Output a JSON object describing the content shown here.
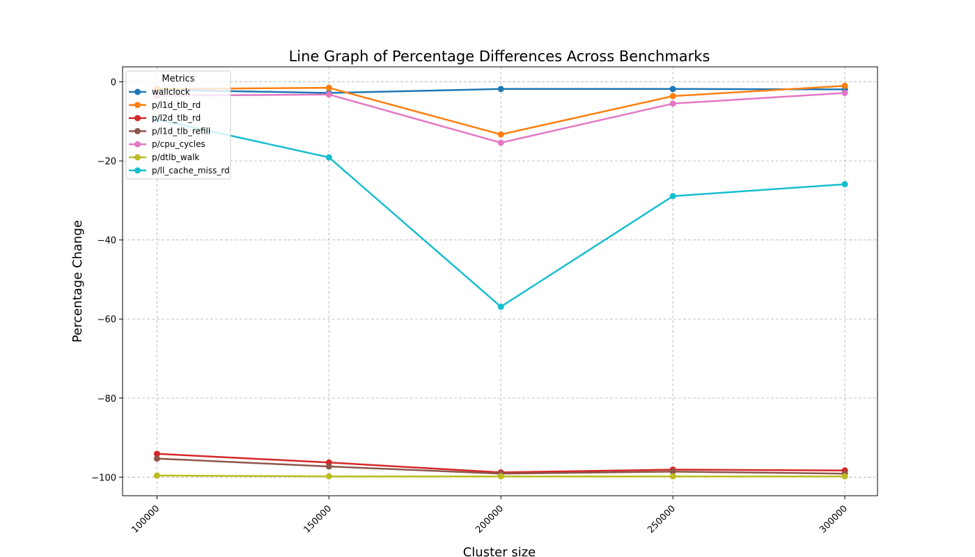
{
  "chart_data": {
    "type": "line",
    "title": "Line Graph of Percentage Differences Across Benchmarks",
    "xlabel": "Cluster size",
    "ylabel": "Percentage Change",
    "x": [
      100000,
      150000,
      200000,
      250000,
      300000
    ],
    "x_tick_labels": [
      "100000",
      "150000",
      "200000",
      "250000",
      "300000"
    ],
    "y_ticks": [
      0,
      -20,
      -40,
      -60,
      -80,
      -100
    ],
    "y_tick_labels": [
      "0",
      "−20",
      "−40",
      "−60",
      "−80",
      "−100"
    ],
    "xlim": [
      90000,
      309500
    ],
    "ylim": [
      -104.7,
      3.8
    ],
    "grid": true,
    "legend": {
      "title": "Metrics",
      "placement": "top-left"
    },
    "series": [
      {
        "name": "wallclock",
        "color": "#1f77b4",
        "values": [
          -2.0,
          -2.8,
          -1.8,
          -1.8,
          -1.9
        ]
      },
      {
        "name": "p/l1d_tlb_rd",
        "color": "#ff7f0e",
        "values": [
          -1.8,
          -1.5,
          -13.3,
          -3.6,
          -1.0
        ]
      },
      {
        "name": "p/l2d_tlb_rd",
        "color": "#d62728",
        "values": [
          -94.1,
          -96.3,
          -98.8,
          -98.1,
          -98.3
        ]
      },
      {
        "name": "p/l1d_tlb_refill",
        "color": "#8c564b",
        "values": [
          -95.3,
          -97.3,
          -99.1,
          -98.6,
          -99.1
        ]
      },
      {
        "name": "p/cpu_cycles",
        "color": "#e377c2",
        "values": [
          -3.5,
          -3.2,
          -15.4,
          -5.5,
          -2.8
        ]
      },
      {
        "name": "p/dtlb_walk",
        "color": "#bcbd22",
        "values": [
          -99.6,
          -99.8,
          -99.8,
          -99.8,
          -99.8
        ]
      },
      {
        "name": "p/ll_cache_miss_rd",
        "color": "#17becf",
        "values": [
          -9.5,
          -19.1,
          -56.9,
          -28.9,
          -25.9
        ]
      }
    ]
  }
}
